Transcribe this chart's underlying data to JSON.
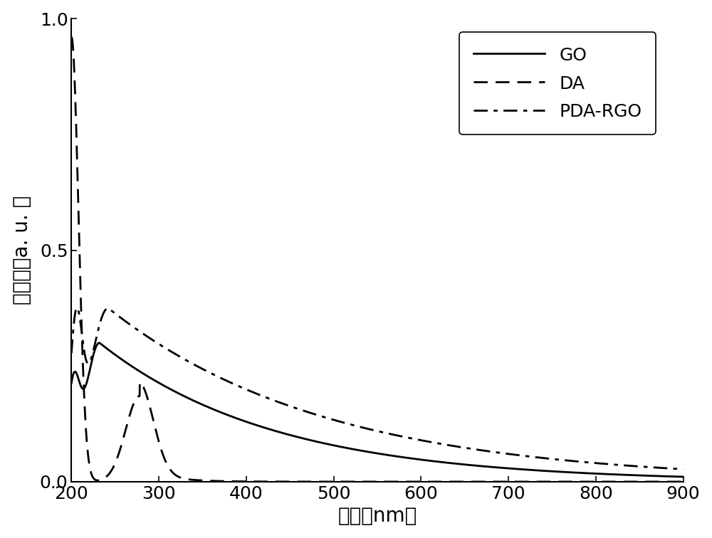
{
  "title": "",
  "xlabel": "波长（nm）",
  "ylabel": "吸光度（a. u. ）",
  "xlim": [
    200,
    900
  ],
  "ylim": [
    0.0,
    1.0
  ],
  "xticks": [
    200,
    300,
    400,
    500,
    600,
    700,
    800,
    900
  ],
  "yticks": [
    0.0,
    0.5,
    1.0
  ],
  "background_color": "#ffffff",
  "line_color": "#000000",
  "legend_labels": [
    "GO",
    "DA",
    "PDA-RGO"
  ],
  "font_size": 18,
  "tick_font_size": 18,
  "label_font_size": 20,
  "linewidth": 2.0
}
